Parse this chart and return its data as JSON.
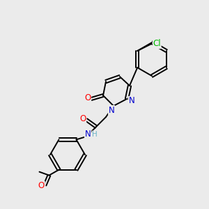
{
  "background_color": "#ebebeb",
  "atoms": {
    "colors": {
      "C": "#000000",
      "N": "#0000cc",
      "O": "#ff0000",
      "Cl": "#00bb00",
      "H": "#6ab4c8"
    }
  },
  "figsize": [
    3.0,
    3.0
  ],
  "dpi": 100
}
